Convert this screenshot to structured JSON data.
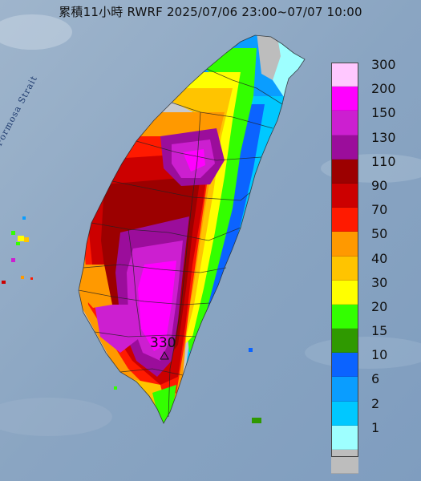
{
  "header": {
    "title": "累積11小時 RWRF 2025/07/06 23:00~07/07 10:00"
  },
  "map_labels": {
    "strait": "Formosa Strait",
    "peak_value": "330"
  },
  "legend": {
    "items": [
      {
        "label": "300",
        "color": "#ffc8ff"
      },
      {
        "label": "200",
        "color": "#ff00ff"
      },
      {
        "label": "150",
        "color": "#cc1fd0"
      },
      {
        "label": "130",
        "color": "#9b0d9b"
      },
      {
        "label": "110",
        "color": "#9c0000"
      },
      {
        "label": "90",
        "color": "#cc0000"
      },
      {
        "label": "70",
        "color": "#ff1a00"
      },
      {
        "label": "50",
        "color": "#ff9900"
      },
      {
        "label": "40",
        "color": "#ffc400"
      },
      {
        "label": "30",
        "color": "#ffff00"
      },
      {
        "label": "20",
        "color": "#33ff00"
      },
      {
        "label": "15",
        "color": "#2f9900"
      },
      {
        "label": "10",
        "color": "#0b63ff"
      },
      {
        "label": "6",
        "color": "#0a9dff"
      },
      {
        "label": "2",
        "color": "#00c8ff"
      },
      {
        "label": "1",
        "color": "#9effff"
      },
      {
        "label": "",
        "color": "#bdbdbd"
      }
    ]
  },
  "colors": {
    "sea": "#8ea9c4",
    "land": "#c6c9cf",
    "county_lines": "#222222"
  }
}
